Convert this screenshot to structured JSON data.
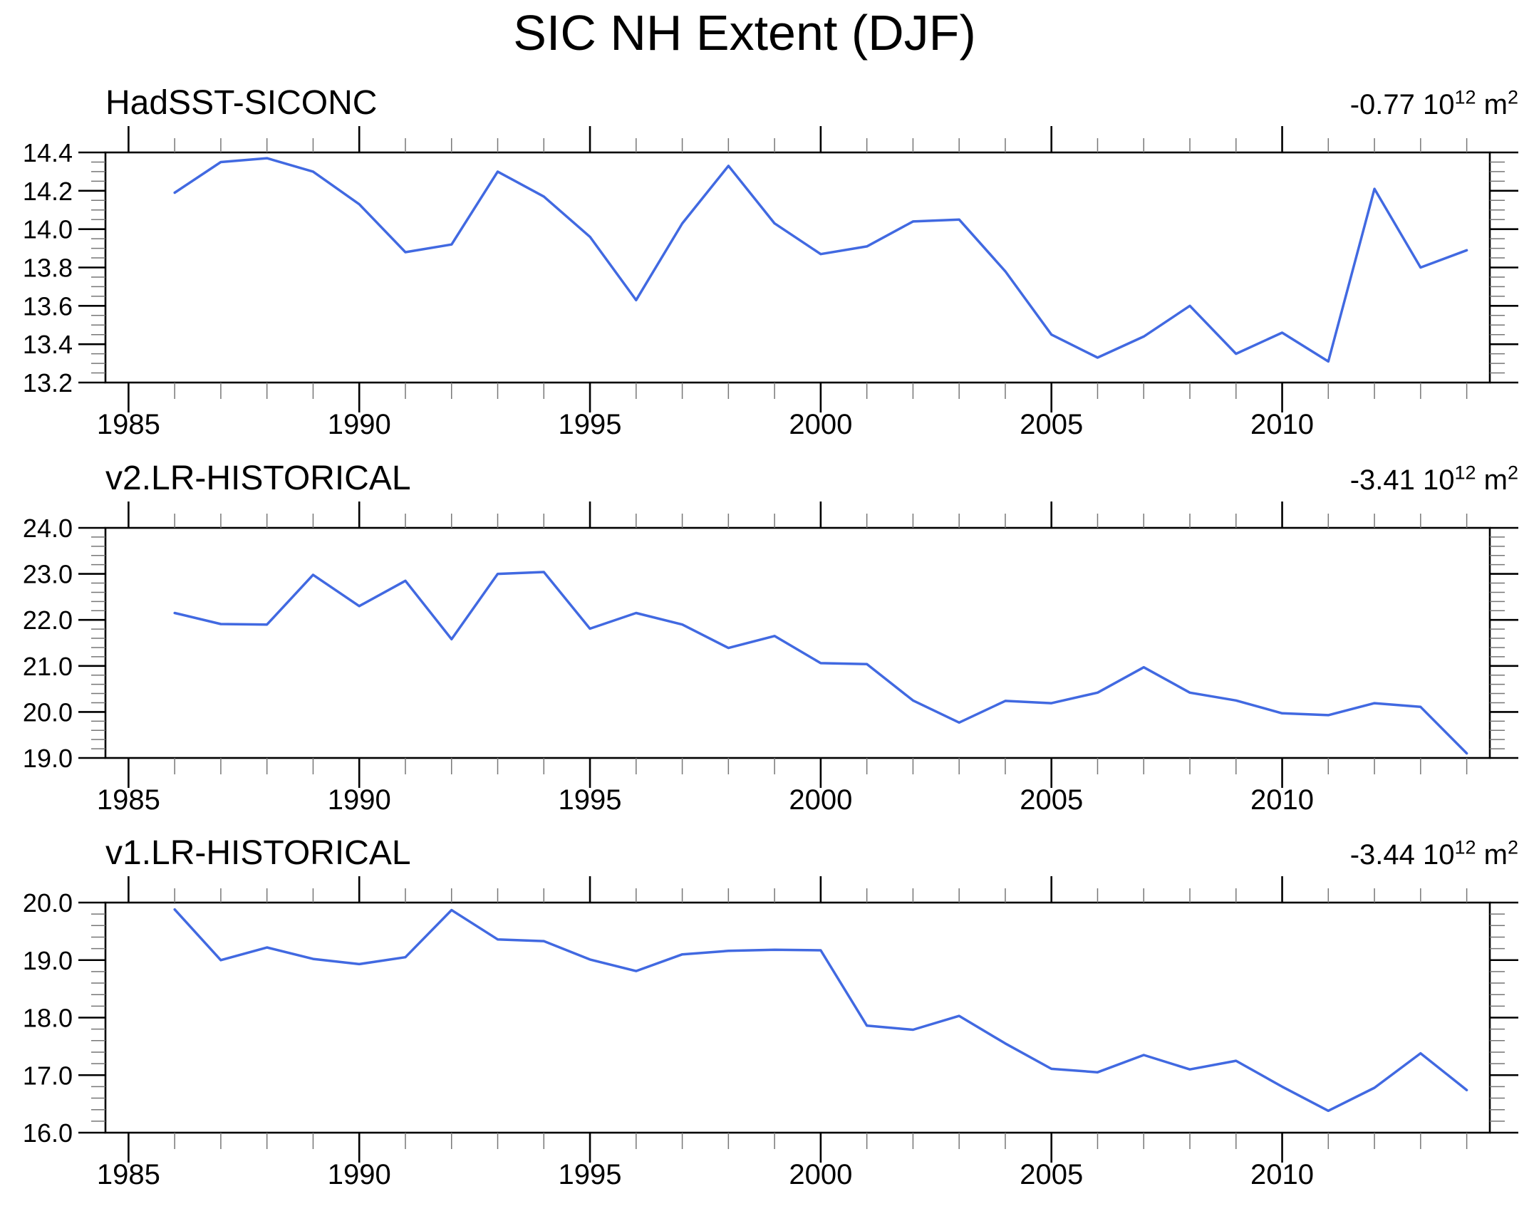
{
  "title": "SIC NH Extent (DJF)",
  "line_color": "#4169E1",
  "axis_color": "#000000",
  "minor_tick_color": "#777777",
  "panels": [
    {
      "label": "HadSST-SICONC",
      "annotation": {
        "value": "-0.77",
        "base": " 10",
        "exponent": "12",
        "unit": " m",
        "unit_exponent": "2"
      }
    },
    {
      "label": "v2.LR-HISTORICAL",
      "annotation": {
        "value": "-3.41",
        "base": " 10",
        "exponent": "12",
        "unit": " m",
        "unit_exponent": "2"
      }
    },
    {
      "label": "v1.LR-HISTORICAL",
      "annotation": {
        "value": "-3.44",
        "base": " 10",
        "exponent": "12",
        "unit": " m",
        "unit_exponent": "2"
      }
    }
  ],
  "chart_data": [
    {
      "type": "line",
      "title": "HadSST-SICONC",
      "annotation": "-0.77 10^12 m^2",
      "x": [
        1986,
        1987,
        1988,
        1989,
        1990,
        1991,
        1992,
        1993,
        1994,
        1995,
        1996,
        1997,
        1998,
        1999,
        2000,
        2001,
        2002,
        2003,
        2004,
        2005,
        2006,
        2007,
        2008,
        2009,
        2010,
        2011,
        2012,
        2013,
        2014
      ],
      "values": [
        14.19,
        14.35,
        14.37,
        14.3,
        14.13,
        13.88,
        13.92,
        14.3,
        14.17,
        13.96,
        13.63,
        14.03,
        14.33,
        14.03,
        13.87,
        13.91,
        14.04,
        14.05,
        13.78,
        13.45,
        13.33,
        13.44,
        13.6,
        13.35,
        13.46,
        13.31,
        14.21,
        13.8,
        13.89
      ],
      "ylim": [
        13.2,
        14.4
      ],
      "yticks": [
        13.2,
        13.4,
        13.6,
        13.8,
        14.0,
        14.2,
        14.4
      ],
      "ytick_minor_step": 0.05,
      "ytick_decimals": 1,
      "x_range": [
        1984.5,
        2014.5
      ],
      "xticks": [
        1985,
        1990,
        1995,
        2000,
        2005,
        2010
      ],
      "xtick_minor_step": 1,
      "grid": false,
      "legend": null
    },
    {
      "type": "line",
      "title": "v2.LR-HISTORICAL",
      "annotation": "-3.41 10^12 m^2",
      "x": [
        1986,
        1987,
        1988,
        1989,
        1990,
        1991,
        1992,
        1993,
        1994,
        1995,
        1996,
        1997,
        1998,
        1999,
        2000,
        2001,
        2002,
        2003,
        2004,
        2005,
        2006,
        2007,
        2008,
        2009,
        2010,
        2011,
        2012,
        2013,
        2014
      ],
      "values": [
        22.15,
        21.91,
        21.9,
        22.98,
        22.3,
        22.85,
        21.58,
        23.0,
        23.04,
        21.81,
        22.15,
        21.9,
        21.39,
        21.65,
        21.06,
        21.04,
        20.25,
        19.77,
        20.24,
        20.19,
        20.42,
        20.97,
        20.42,
        20.25,
        19.97,
        19.93,
        20.19,
        20.11,
        19.1
      ],
      "ylim": [
        19.0,
        24.0
      ],
      "yticks": [
        19.0,
        20.0,
        21.0,
        22.0,
        23.0,
        24.0
      ],
      "ytick_minor_step": 0.2,
      "ytick_decimals": 1,
      "x_range": [
        1984.5,
        2014.5
      ],
      "xticks": [
        1985,
        1990,
        1995,
        2000,
        2005,
        2010
      ],
      "xtick_minor_step": 1,
      "grid": false,
      "legend": null
    },
    {
      "type": "line",
      "title": "v1.LR-HISTORICAL",
      "annotation": "-3.44 10^12 m^2",
      "x": [
        1986,
        1987,
        1988,
        1989,
        1990,
        1991,
        1992,
        1993,
        1994,
        1995,
        1996,
        1997,
        1998,
        1999,
        2000,
        2001,
        2002,
        2003,
        2004,
        2005,
        2006,
        2007,
        2008,
        2009,
        2010,
        2011,
        2012,
        2013,
        2014
      ],
      "values": [
        19.88,
        19.0,
        19.22,
        19.02,
        18.93,
        19.05,
        19.87,
        19.36,
        19.33,
        19.01,
        18.81,
        19.1,
        19.16,
        19.18,
        19.17,
        17.86,
        17.79,
        18.03,
        17.55,
        17.11,
        17.05,
        17.35,
        17.1,
        17.25,
        16.8,
        16.38,
        16.78,
        17.38,
        16.74
      ],
      "ylim": [
        16.0,
        20.0
      ],
      "yticks": [
        16.0,
        17.0,
        18.0,
        19.0,
        20.0
      ],
      "ytick_minor_step": 0.2,
      "ytick_decimals": 1,
      "x_range": [
        1984.5,
        2014.5
      ],
      "xticks": [
        1985,
        1990,
        1995,
        2000,
        2005,
        2010
      ],
      "xtick_minor_step": 1,
      "grid": false,
      "legend": null
    }
  ]
}
